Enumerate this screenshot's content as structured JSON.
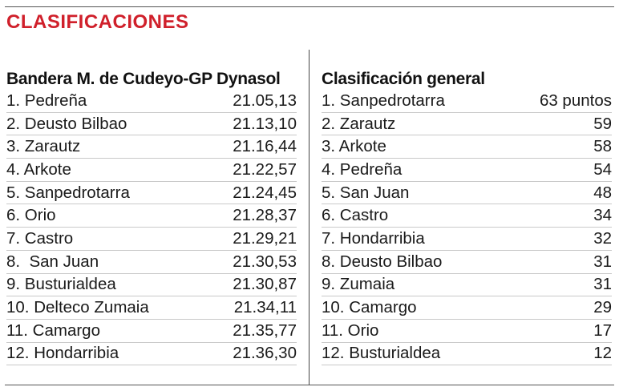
{
  "title": "CLASIFICACIONES",
  "colors": {
    "title": "#d0202b",
    "text": "#1a1a1a",
    "row_rule": "#c9c9c9"
  },
  "left_table": {
    "header": "Bandera M. de Cudeyo-GP Dynasol",
    "rows": [
      {
        "name": "1. Pedreña",
        "value": "21.05,13"
      },
      {
        "name": "2. Deusto Bilbao",
        "value": "21.13,10"
      },
      {
        "name": "3. Zarautz",
        "value": "21.16,44"
      },
      {
        "name": "4. Arkote",
        "value": "21.22,57"
      },
      {
        "name": "5. Sanpedrotarra",
        "value": "21.24,45"
      },
      {
        "name": "6. Orio",
        "value": "21.28,37"
      },
      {
        "name": "7. Castro",
        "value": "21.29,21"
      },
      {
        "name": "8.  San Juan",
        "value": "21.30,53"
      },
      {
        "name": "9. Busturialdea",
        "value": "21.30,87"
      },
      {
        "name": "10. Delteco Zumaia",
        "value": "21.34,11"
      },
      {
        "name": "11. Camargo",
        "value": "21.35,77"
      },
      {
        "name": "12. Hondarribia",
        "value": "21.36,30"
      }
    ]
  },
  "right_table": {
    "header": "Clasificación general",
    "rows": [
      {
        "name": "1. Sanpedrotarra",
        "value": "63 puntos"
      },
      {
        "name": "2. Zarautz",
        "value": "59"
      },
      {
        "name": "3. Arkote",
        "value": "58"
      },
      {
        "name": "4. Pedreña",
        "value": "54"
      },
      {
        "name": "5. San Juan",
        "value": "48"
      },
      {
        "name": "6. Castro",
        "value": "34"
      },
      {
        "name": "7. Hondarribia",
        "value": "32"
      },
      {
        "name": "8. Deusto Bilbao",
        "value": "31"
      },
      {
        "name": "9. Zumaia",
        "value": "31"
      },
      {
        "name": "10. Camargo",
        "value": "29"
      },
      {
        "name": "11. Orio",
        "value": "17"
      },
      {
        "name": "12. Busturialdea",
        "value": "12"
      }
    ]
  }
}
